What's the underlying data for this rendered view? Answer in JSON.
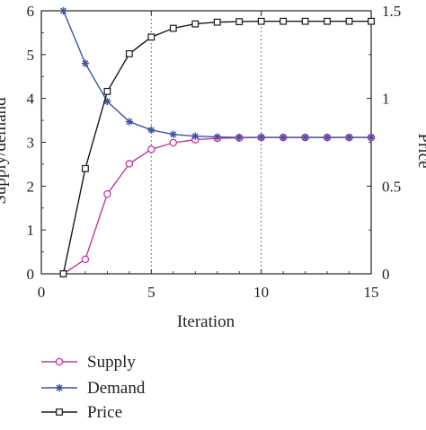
{
  "chart_data": {
    "type": "line",
    "title": "",
    "xlabel": "Iteration",
    "ylabel": "Supply/demand",
    "y2label": "Price",
    "xlim": [
      0,
      15
    ],
    "ylim": [
      0,
      6
    ],
    "y2lim": [
      0,
      1.5
    ],
    "x_ticks": [
      "0",
      "5",
      "10",
      "15"
    ],
    "y_ticks": [
      "0",
      "1",
      "2",
      "3",
      "4",
      "5",
      "6"
    ],
    "y2_ticks": [
      "0",
      "0.5",
      "1",
      "1.5"
    ],
    "grid": "vertical dotted lines at x ticks",
    "legend_position": "below plot",
    "x": [
      1,
      2,
      3,
      4,
      5,
      6,
      7,
      8,
      9,
      10,
      11,
      12,
      13,
      14,
      15
    ],
    "series": [
      {
        "name": "Supply",
        "axis": "left",
        "color": "#c0399b",
        "marker": "circle",
        "values": [
          0,
          0.33,
          1.82,
          2.51,
          2.84,
          2.99,
          3.06,
          3.09,
          3.1,
          3.11,
          3.11,
          3.11,
          3.11,
          3.11,
          3.11
        ]
      },
      {
        "name": "Demand",
        "axis": "left",
        "color": "#3c52a6",
        "marker": "star",
        "values": [
          6.0,
          4.8,
          3.93,
          3.47,
          3.28,
          3.18,
          3.14,
          3.12,
          3.11,
          3.11,
          3.11,
          3.11,
          3.11,
          3.11,
          3.11
        ]
      },
      {
        "name": "Price",
        "axis": "right",
        "color": "#1a1a1a",
        "marker": "square",
        "values": [
          0,
          0.6,
          1.04,
          1.255,
          1.35,
          1.4,
          1.425,
          1.435,
          1.438,
          1.44,
          1.44,
          1.44,
          1.44,
          1.44,
          1.44
        ]
      }
    ]
  }
}
